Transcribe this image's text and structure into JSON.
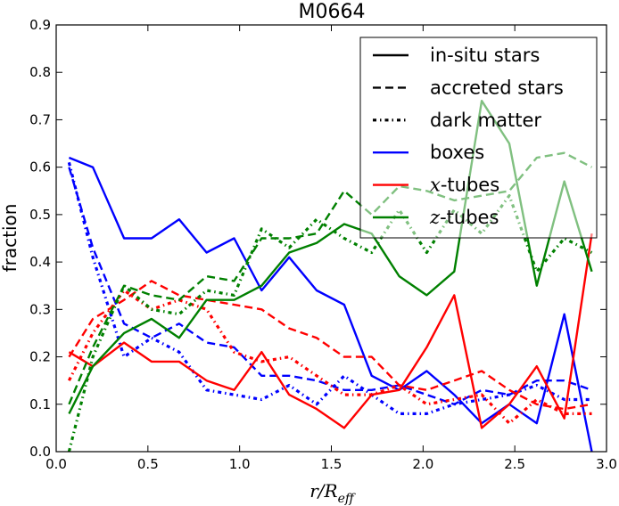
{
  "chart_data": {
    "type": "line",
    "title": "M0664",
    "xlabel": "r/R_eff",
    "xlabel_parts": {
      "main": "r/R",
      "sub": "eff"
    },
    "ylabel": "fraction",
    "xlim": [
      0.0,
      3.0
    ],
    "ylim": [
      0.0,
      0.9
    ],
    "xticks": [
      "0.0",
      "0.5",
      "1.0",
      "1.5",
      "2.0",
      "2.5",
      "3.0"
    ],
    "yticks": [
      "0.0",
      "0.1",
      "0.2",
      "0.3",
      "0.4",
      "0.5",
      "0.6",
      "0.7",
      "0.8",
      "0.9"
    ],
    "legend": {
      "position": "top-right",
      "entries": [
        {
          "label": "in-situ stars",
          "style": "solid",
          "color": "#000000"
        },
        {
          "label": "accreted stars",
          "style": "dashed",
          "color": "#000000"
        },
        {
          "label": "dark matter",
          "style": "dashdot",
          "color": "#000000"
        },
        {
          "label": "boxes",
          "style": "solid",
          "color": "#0000ff"
        },
        {
          "label": "x-tubes",
          "style": "solid",
          "color": "#ff0000",
          "math": true,
          "main": "x",
          "rest": "-tubes"
        },
        {
          "label": "z-tubes",
          "style": "solid",
          "color": "#008000",
          "math": true,
          "main": "z",
          "rest": "-tubes"
        }
      ]
    },
    "x": [
      0.07,
      0.2,
      0.37,
      0.52,
      0.67,
      0.82,
      0.97,
      1.12,
      1.27,
      1.42,
      1.57,
      1.72,
      1.87,
      2.02,
      2.17,
      2.32,
      2.47,
      2.62,
      2.77,
      2.92
    ],
    "series": [
      {
        "name": "boxes in-situ stars",
        "color": "#0000ff",
        "style": "solid",
        "values": [
          0.62,
          0.6,
          0.45,
          0.45,
          0.49,
          0.42,
          0.45,
          0.34,
          0.41,
          0.34,
          0.31,
          0.16,
          0.13,
          0.17,
          0.12,
          0.06,
          0.1,
          0.06,
          0.29,
          0.0
        ]
      },
      {
        "name": "boxes accreted stars",
        "color": "#0000ff",
        "style": "dashed",
        "values": [
          0.6,
          0.43,
          0.27,
          0.24,
          0.27,
          0.23,
          0.22,
          0.16,
          0.16,
          0.15,
          0.13,
          0.13,
          0.14,
          0.12,
          0.1,
          0.13,
          0.12,
          0.15,
          0.15,
          0.13
        ]
      },
      {
        "name": "boxes dark matter",
        "color": "#0000ff",
        "style": "dashdot",
        "values": [
          0.61,
          0.41,
          0.2,
          0.24,
          0.21,
          0.13,
          0.12,
          0.11,
          0.14,
          0.1,
          0.16,
          0.12,
          0.08,
          0.08,
          0.1,
          0.11,
          0.12,
          0.14,
          0.11,
          0.11
        ]
      },
      {
        "name": "x-tubes in-situ stars",
        "color": "#ff0000",
        "style": "solid",
        "values": [
          0.21,
          0.18,
          0.23,
          0.19,
          0.19,
          0.15,
          0.13,
          0.21,
          0.12,
          0.09,
          0.05,
          0.12,
          0.13,
          0.22,
          0.33,
          0.05,
          0.1,
          0.18,
          0.07,
          0.46
        ]
      },
      {
        "name": "x-tubes accreted stars",
        "color": "#ff0000",
        "style": "dashed",
        "values": [
          0.2,
          0.28,
          0.32,
          0.36,
          0.33,
          0.32,
          0.31,
          0.3,
          0.26,
          0.24,
          0.2,
          0.2,
          0.14,
          0.13,
          0.15,
          0.17,
          0.13,
          0.1,
          0.09,
          0.1
        ]
      },
      {
        "name": "x-tubes dark matter",
        "color": "#ff0000",
        "style": "dashdot",
        "values": [
          0.15,
          0.25,
          0.34,
          0.3,
          0.32,
          0.3,
          0.21,
          0.19,
          0.2,
          0.16,
          0.12,
          0.12,
          0.14,
          0.1,
          0.11,
          0.12,
          0.06,
          0.11,
          0.08,
          0.08
        ]
      },
      {
        "name": "z-tubes in-situ stars",
        "color": "#008000",
        "style": "solid",
        "values": [
          0.08,
          0.18,
          0.25,
          0.28,
          0.24,
          0.32,
          0.32,
          0.35,
          0.42,
          0.44,
          0.48,
          0.46,
          0.37,
          0.33,
          0.38,
          0.74,
          0.65,
          0.35,
          0.57,
          0.38
        ]
      },
      {
        "name": "z-tubes accreted stars",
        "color": "#008000",
        "style": "dashed",
        "values": [
          0.1,
          0.22,
          0.35,
          0.33,
          0.32,
          0.37,
          0.36,
          0.45,
          0.45,
          0.46,
          0.55,
          0.5,
          0.56,
          0.55,
          0.53,
          0.54,
          0.55,
          0.62,
          0.63,
          0.6
        ]
      },
      {
        "name": "z-tubes dark matter",
        "color": "#008000",
        "style": "dashdot",
        "values": [
          0.0,
          0.2,
          0.35,
          0.3,
          0.29,
          0.34,
          0.33,
          0.47,
          0.43,
          0.49,
          0.45,
          0.42,
          0.51,
          0.42,
          0.51,
          0.46,
          0.54,
          0.38,
          0.45,
          0.42
        ]
      }
    ]
  }
}
